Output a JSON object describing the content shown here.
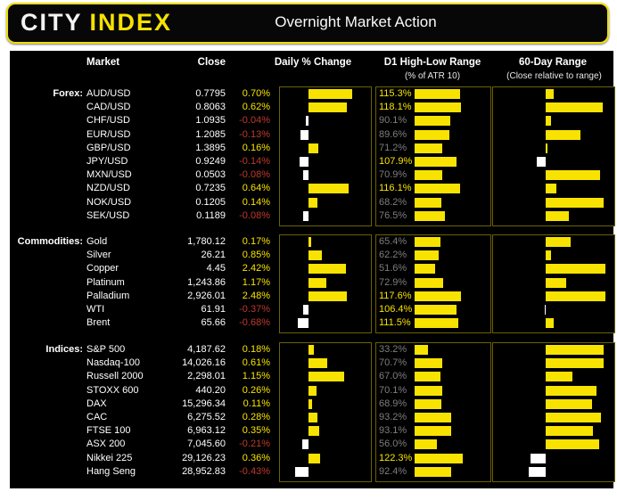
{
  "header": {
    "logo_city": "CITY",
    "logo_index": "INDEX",
    "title": "Overnight Market Action"
  },
  "columns": {
    "market": "Market",
    "close": "Close",
    "daily": "Daily % Change",
    "d1": "D1 High-Low Range",
    "d1_sub": "(% of ATR 10)",
    "d60": "60-Day Range",
    "d60_sub": "(Close relative to range)"
  },
  "colors": {
    "accent_yellow": "#f8e300",
    "negative_red": "#c0392b",
    "muted_gray": "#7e7e7e",
    "box_border_olive": "#6b6200",
    "positive_bar": "#f8e300",
    "negative_bar": "#ffffff"
  },
  "axes": {
    "daily_full_scale_pct": [
      1,
      4,
      2
    ],
    "d1_full_scale_pct": 200,
    "d1_highlight_threshold_pct": 100,
    "d60_anchor": "center, yellow right = close high in range, white left = close low in range"
  },
  "chart_data": {
    "type": "table",
    "title": "Overnight Market Action",
    "groups": [
      {
        "label": "Forex:",
        "rows": [
          {
            "market": "AUD/USD",
            "close": "0.7795",
            "daily_label": "0.70%",
            "daily_pct": 0.7,
            "d1_label": "115.3%",
            "d1_pct": 115.3,
            "d60_pos": 0.12
          },
          {
            "market": "CAD/USD",
            "close": "0.8063",
            "daily_label": "0.62%",
            "daily_pct": 0.62,
            "d1_label": "118.1%",
            "d1_pct": 118.1,
            "d60_pos": 0.83
          },
          {
            "market": "CHF/USD",
            "close": "1.0935",
            "daily_label": "-0.04%",
            "daily_pct": -0.04,
            "d1_label": "90.1%",
            "d1_pct": 90.1,
            "d60_pos": 0.08
          },
          {
            "market": "EUR/USD",
            "close": "1.2085",
            "daily_label": "-0.13%",
            "daily_pct": -0.13,
            "d1_label": "89.6%",
            "d1_pct": 89.6,
            "d60_pos": 0.51
          },
          {
            "market": "GBP/USD",
            "close": "1.3895",
            "daily_label": "0.16%",
            "daily_pct": 0.16,
            "d1_label": "71.2%",
            "d1_pct": 71.2,
            "d60_pos": 0.03
          },
          {
            "market": "JPY/USD",
            "close": "0.9249",
            "daily_label": "-0.14%",
            "daily_pct": -0.14,
            "d1_label": "107.9%",
            "d1_pct": 107.9,
            "d60_pos": -0.17
          },
          {
            "market": "MXN/USD",
            "close": "0.0503",
            "daily_label": "-0.08%",
            "daily_pct": -0.08,
            "d1_label": "70.9%",
            "d1_pct": 70.9,
            "d60_pos": 0.79
          },
          {
            "market": "NZD/USD",
            "close": "0.7235",
            "daily_label": "0.64%",
            "daily_pct": 0.64,
            "d1_label": "116.1%",
            "d1_pct": 116.1,
            "d60_pos": 0.16
          },
          {
            "market": "NOK/USD",
            "close": "0.1205",
            "daily_label": "0.14%",
            "daily_pct": 0.14,
            "d1_label": "68.2%",
            "d1_pct": 68.2,
            "d60_pos": 0.84
          },
          {
            "market": "SEK/USD",
            "close": "0.1189",
            "daily_label": "-0.08%",
            "daily_pct": -0.08,
            "d1_label": "76.5%",
            "d1_pct": 76.5,
            "d60_pos": 0.34
          }
        ]
      },
      {
        "label": "Commodities:",
        "rows": [
          {
            "market": "Gold",
            "close": "1,780.12",
            "daily_label": "0.17%",
            "daily_pct": 0.17,
            "d1_label": "65.4%",
            "d1_pct": 65.4,
            "d60_pos": 0.36
          },
          {
            "market": "Silver",
            "close": "26.21",
            "daily_label": "0.85%",
            "daily_pct": 0.85,
            "d1_label": "62.2%",
            "d1_pct": 62.2,
            "d60_pos": 0.08
          },
          {
            "market": "Copper",
            "close": "4.45",
            "daily_label": "2.42%",
            "daily_pct": 2.42,
            "d1_label": "51.6%",
            "d1_pct": 51.6,
            "d60_pos": 0.87
          },
          {
            "market": "Platinum",
            "close": "1,243.86",
            "daily_label": "1.17%",
            "daily_pct": 1.17,
            "d1_label": "72.9%",
            "d1_pct": 72.9,
            "d60_pos": 0.3
          },
          {
            "market": "Palladium",
            "close": "2,926.01",
            "daily_label": "2.48%",
            "daily_pct": 2.48,
            "d1_label": "117.6%",
            "d1_pct": 117.6,
            "d60_pos": 0.87
          },
          {
            "market": "WTI",
            "close": "61.91",
            "daily_label": "-0.37%",
            "daily_pct": -0.37,
            "d1_label": "106.4%",
            "d1_pct": 106.4,
            "d60_pos": -0.02
          },
          {
            "market": "Brent",
            "close": "65.66",
            "daily_label": "-0.68%",
            "daily_pct": -0.68,
            "d1_label": "111.5%",
            "d1_pct": 111.5,
            "d60_pos": 0.12
          }
        ]
      },
      {
        "label": "Indices:",
        "rows": [
          {
            "market": "S&P 500",
            "close": "4,187.62",
            "daily_label": "0.18%",
            "daily_pct": 0.18,
            "d1_label": "33.2%",
            "d1_pct": 33.2,
            "d60_pos": 0.84
          },
          {
            "market": "Nasdaq-100",
            "close": "14,026.16",
            "daily_label": "0.61%",
            "daily_pct": 0.61,
            "d1_label": "70.7%",
            "d1_pct": 70.7,
            "d60_pos": 0.84
          },
          {
            "market": "Russell 2000",
            "close": "2,298.01",
            "daily_label": "1.15%",
            "daily_pct": 1.15,
            "d1_label": "67.0%",
            "d1_pct": 67.0,
            "d60_pos": 0.39
          },
          {
            "market": "STOXX 600",
            "close": "440.20",
            "daily_label": "0.26%",
            "daily_pct": 0.26,
            "d1_label": "70.1%",
            "d1_pct": 70.1,
            "d60_pos": 0.74
          },
          {
            "market": "DAX",
            "close": "15,296.34",
            "daily_label": "0.11%",
            "daily_pct": 0.11,
            "d1_label": "68.9%",
            "d1_pct": 68.9,
            "d60_pos": 0.68
          },
          {
            "market": "CAC",
            "close": "6,275.52",
            "daily_label": "0.28%",
            "daily_pct": 0.28,
            "d1_label": "93.2%",
            "d1_pct": 93.2,
            "d60_pos": 0.81
          },
          {
            "market": "FTSE 100",
            "close": "6,963.12",
            "daily_label": "0.35%",
            "daily_pct": 0.35,
            "d1_label": "93.1%",
            "d1_pct": 93.1,
            "d60_pos": 0.69
          },
          {
            "market": "ASX 200",
            "close": "7,045.60",
            "daily_label": "-0.21%",
            "daily_pct": -0.21,
            "d1_label": "56.0%",
            "d1_pct": 56.0,
            "d60_pos": 0.78
          },
          {
            "market": "Nikkei 225",
            "close": "29,126.23",
            "daily_label": "0.36%",
            "daily_pct": 0.36,
            "d1_label": "122.3%",
            "d1_pct": 122.3,
            "d60_pos": -0.3
          },
          {
            "market": "Hang Seng",
            "close": "28,952.83",
            "daily_label": "-0.43%",
            "daily_pct": -0.43,
            "d1_label": "92.4%",
            "d1_pct": 92.4,
            "d60_pos": -0.33
          }
        ]
      }
    ]
  }
}
